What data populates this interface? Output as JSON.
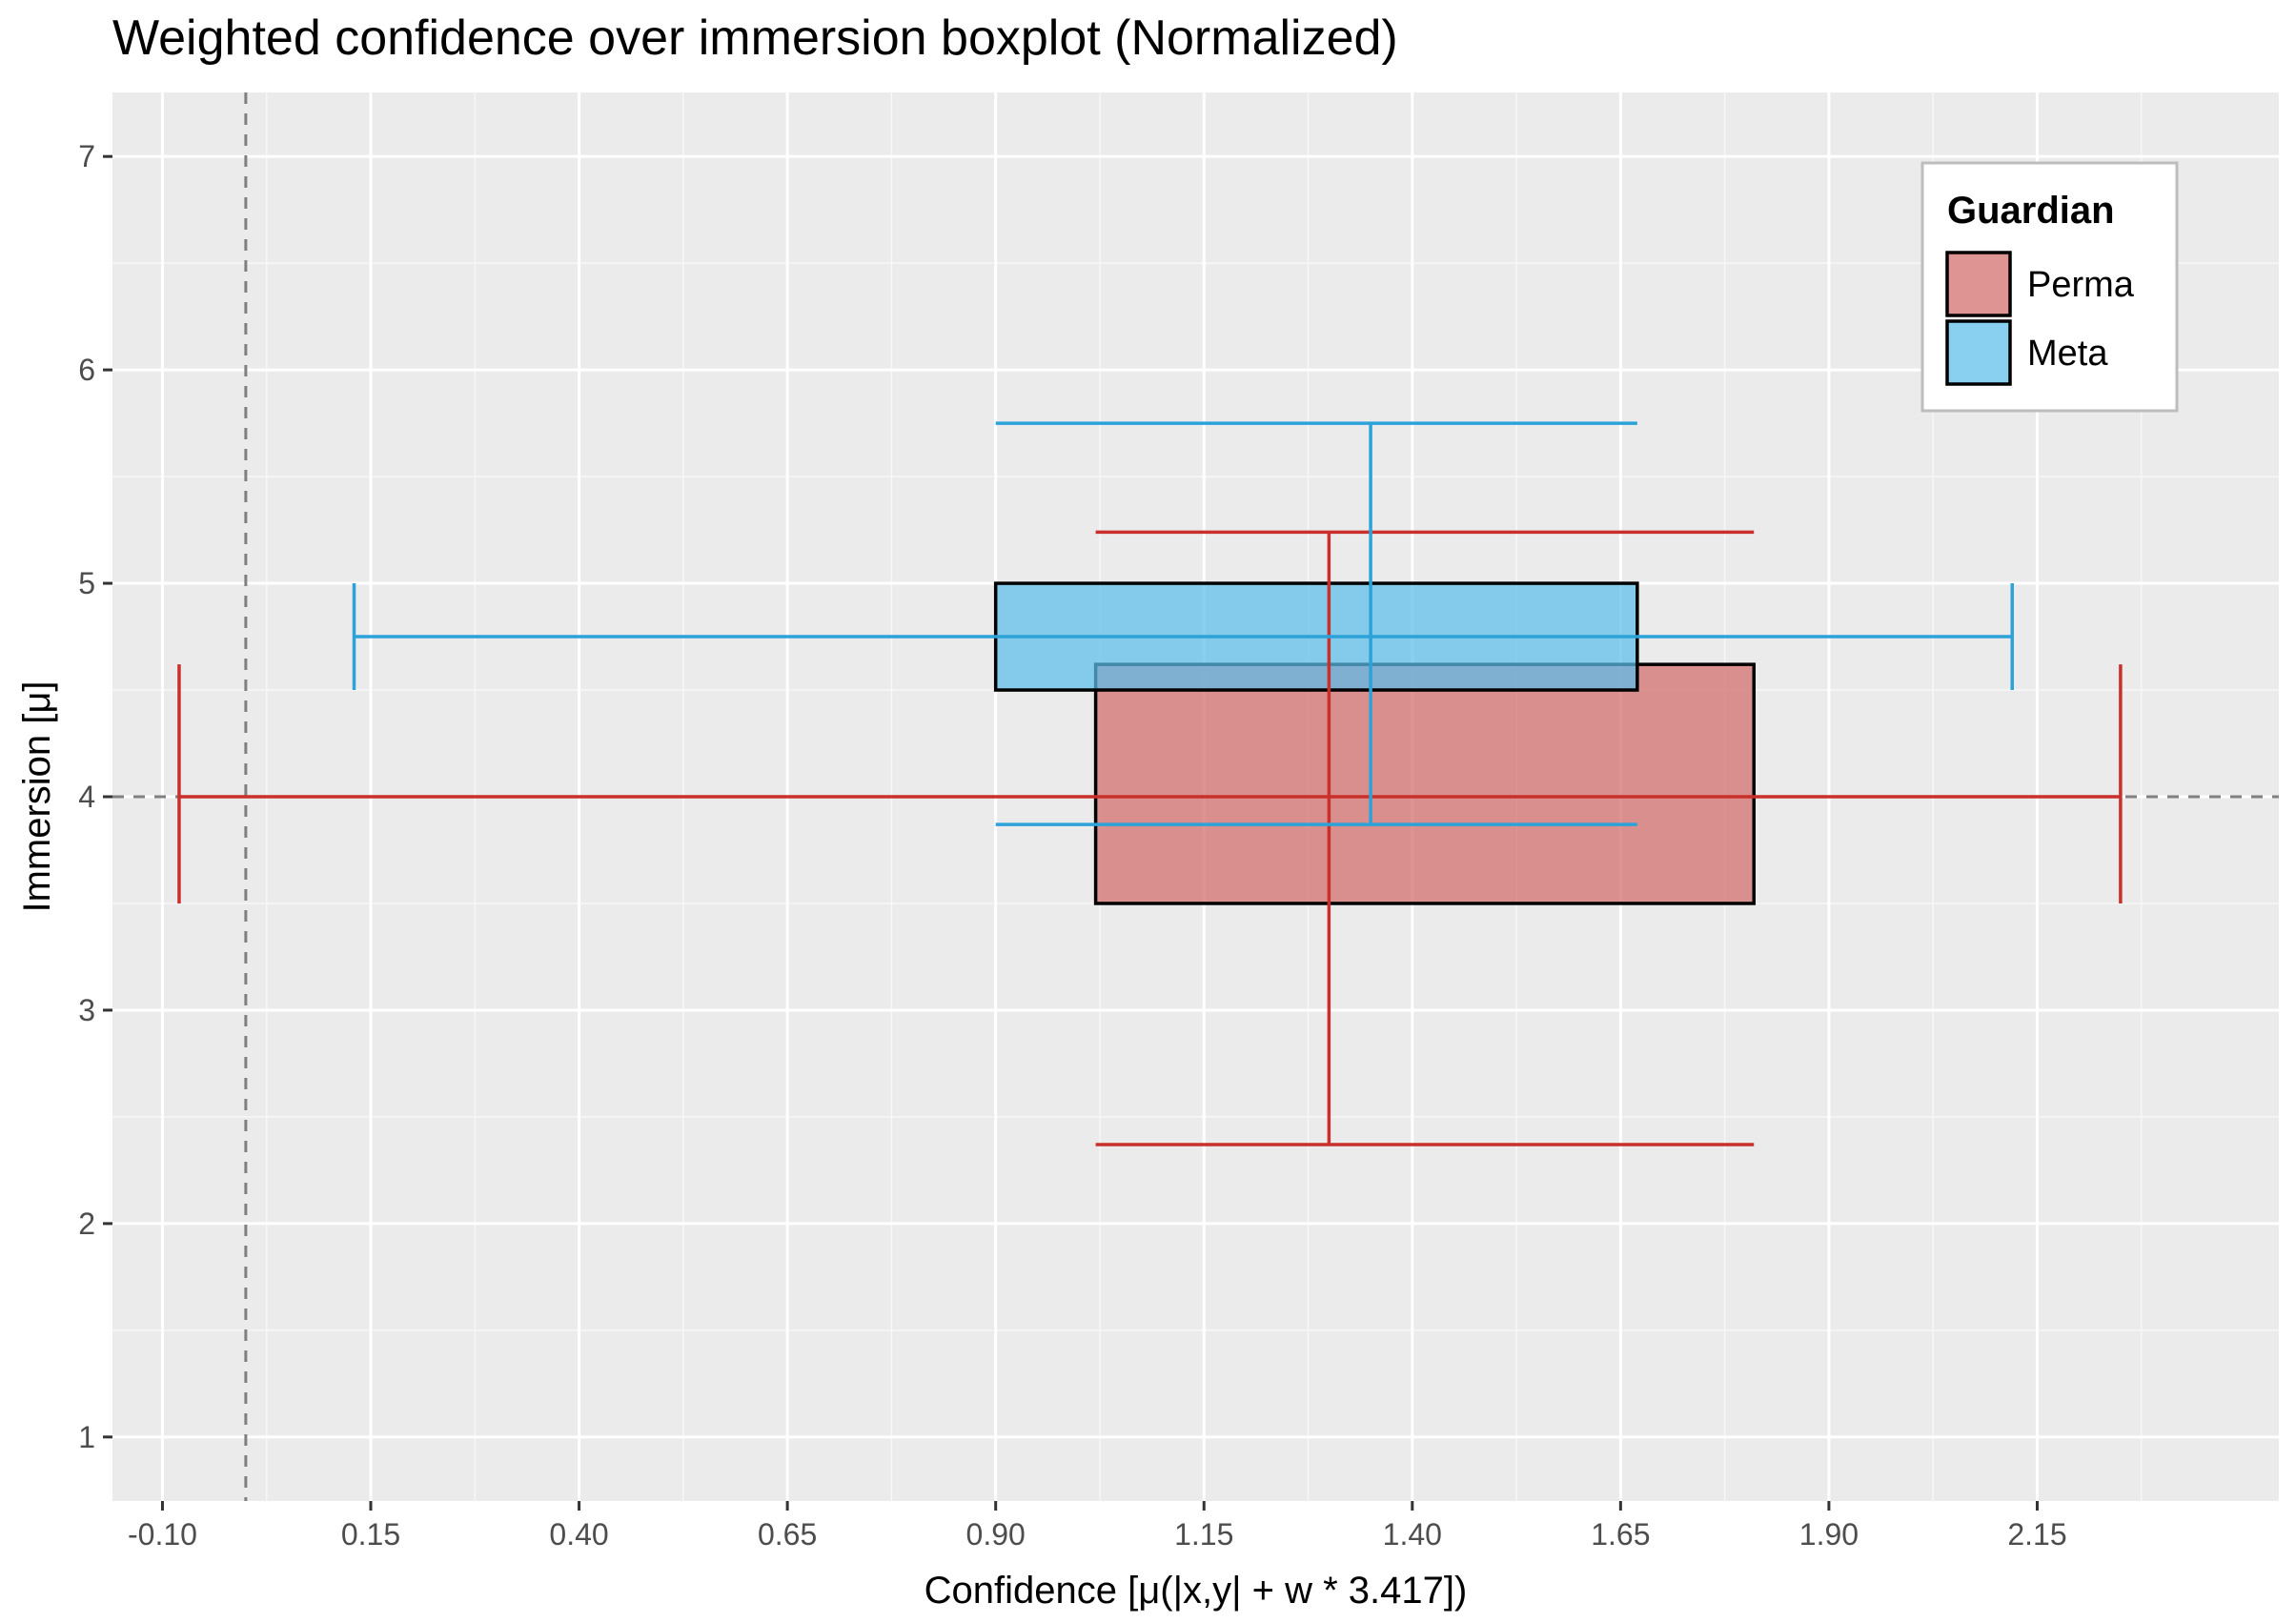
{
  "chart_data": {
    "type": "boxplot",
    "orientation": "horizontal",
    "title": "Weighted confidence over immersion boxplot (Normalized)",
    "xlabel": "Confidence [μ(|x,y| + w * 3.417])",
    "ylabel": "Immersion [μ]",
    "xlim": [
      -0.16,
      2.44
    ],
    "ylim": [
      0.7,
      7.3
    ],
    "x_ticks": [
      -0.1,
      0.15,
      0.4,
      0.65,
      0.9,
      1.15,
      1.4,
      1.65,
      1.9,
      2.15
    ],
    "x_tick_labels": [
      "-0.10",
      "0.15",
      "0.40",
      "0.65",
      "0.90",
      "1.15",
      "1.40",
      "1.65",
      "1.90",
      "2.15"
    ],
    "y_ticks": [
      1,
      2,
      3,
      4,
      5,
      6,
      7
    ],
    "y_tick_labels": [
      "1",
      "2",
      "3",
      "4",
      "5",
      "6",
      "7"
    ],
    "reference_lines": {
      "vertical_x": 0.0,
      "horizontal_y": 4.0
    },
    "legend": {
      "title": "Guardian",
      "position": "top-right"
    },
    "series": [
      {
        "name": "Perma",
        "fill": "#d36b6b",
        "line_color": "#c9302c",
        "x_box": [
          1.02,
          1.81
        ],
        "y_box": [
          3.5,
          4.62
        ],
        "x_median": 4.0,
        "x_whiskers": [
          -0.08,
          2.25
        ],
        "x_whisker_cap_range": [
          3.5,
          4.62
        ],
        "y_center": 1.3,
        "y_whiskers": [
          2.37,
          5.24
        ],
        "y_whisker_cap_range": [
          1.02,
          1.81
        ]
      },
      {
        "name": "Meta",
        "fill": "#5bbcea",
        "line_color": "#2ca2d8",
        "x_box": [
          0.9,
          1.67
        ],
        "y_box": [
          4.5,
          5.0
        ],
        "x_median": 4.75,
        "x_whiskers": [
          0.13,
          2.12
        ],
        "x_whisker_cap_range": [
          4.5,
          5.0
        ],
        "y_center": 1.35,
        "y_whiskers": [
          3.87,
          5.75
        ],
        "y_whisker_cap_range": [
          0.9,
          1.67
        ]
      }
    ]
  }
}
